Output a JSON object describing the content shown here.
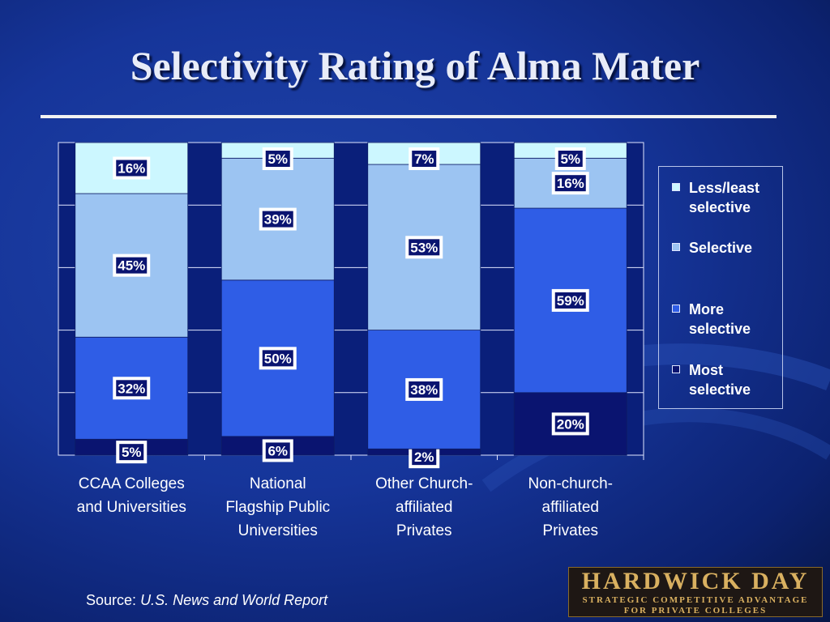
{
  "title": "Selectivity Rating of Alma Mater",
  "source": {
    "prefix": "Source:",
    "publication": "U.S. News and World Report"
  },
  "logo": {
    "name": "HARDWICK DAY",
    "tagline_1": "STRATEGIC COMPETITIVE ADVANTAGE",
    "tagline_2": "FOR PRIVATE COLLEGES"
  },
  "colors": {
    "background": "#16359a",
    "plot_background": "#0a1f7a",
    "less_least_selective": "#ccf7ff",
    "selective": "#9cc4f2",
    "more_selective": "#2f5de6",
    "most_selective": "#0a1470",
    "label_box": "#0a1470"
  },
  "chart_data": {
    "type": "bar",
    "stacked": true,
    "percent_stacked": true,
    "categories": [
      [
        "CCAA Colleges",
        "and Universities"
      ],
      [
        "National",
        "Flagship Public",
        "Universities"
      ],
      [
        "Other Church-",
        "affiliated",
        "Privates"
      ],
      [
        "Non-church-",
        "affiliated",
        "Privates"
      ]
    ],
    "series": [
      {
        "name": "Most selective",
        "values": [
          5,
          6,
          2,
          20
        ],
        "labels": [
          "5%",
          "6%",
          "2%",
          "20%"
        ]
      },
      {
        "name": "More selective",
        "values": [
          32,
          50,
          38,
          59
        ],
        "labels": [
          "32%",
          "50%",
          "38%",
          "59%"
        ]
      },
      {
        "name": "Selective",
        "values": [
          45,
          39,
          53,
          16
        ],
        "labels": [
          "45%",
          "39%",
          "53%",
          "16%"
        ]
      },
      {
        "name": "Less/least selective",
        "values": [
          16,
          5,
          7,
          5
        ],
        "labels": [
          "16%",
          "5%",
          "7%",
          "5%"
        ]
      }
    ],
    "ylim": [
      0,
      100
    ],
    "grid": true,
    "legend_position": "right"
  },
  "legend": {
    "items": [
      {
        "lines": [
          "Less/least",
          "selective"
        ],
        "color": "#ccf7ff"
      },
      {
        "lines": [
          "Selective"
        ],
        "color": "#9cc4f2"
      },
      {
        "lines": [
          "More",
          "selective"
        ],
        "color": "#2f5de6"
      },
      {
        "lines": [
          "Most",
          "selective"
        ],
        "color": "#0a1470"
      }
    ]
  }
}
